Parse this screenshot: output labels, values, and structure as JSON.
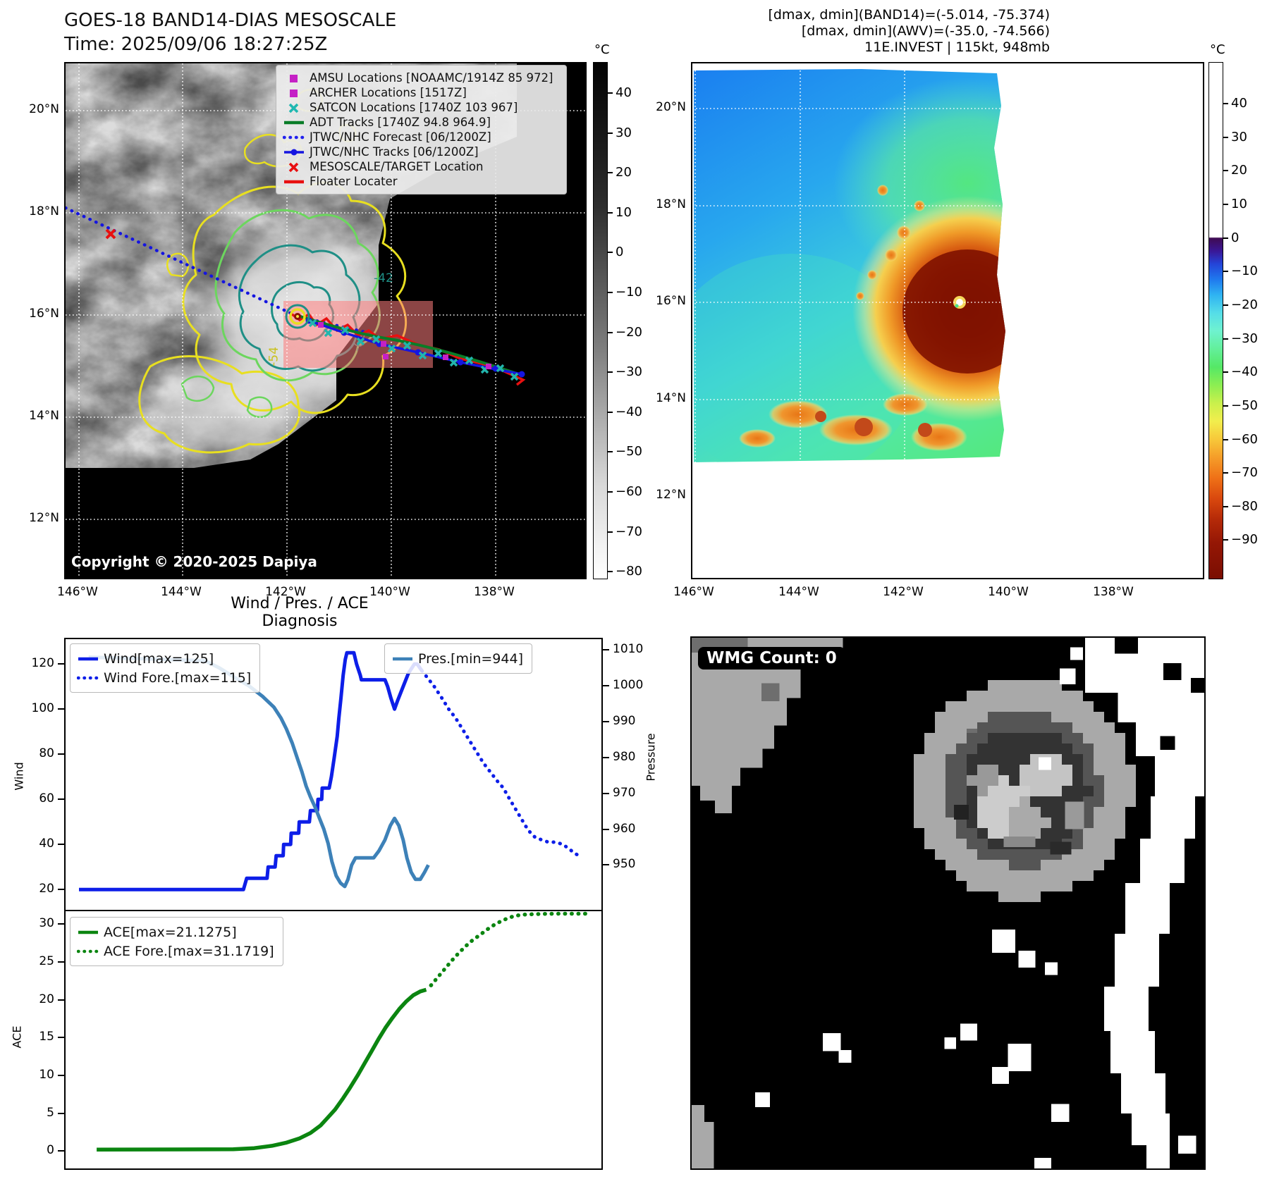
{
  "band14": {
    "title": "GOES-18 BAND14-DIAS MESOSCALE",
    "time": "Time: 2025/09/06 18:27:25Z",
    "copyright": "Copyright © 2020-2025 Dapiya",
    "legend": [
      {
        "marker": "square",
        "color": "#c520c5",
        "label": "AMSU Locations [NOAAMC/1914Z 85 972]"
      },
      {
        "marker": "square",
        "color": "#c520c5",
        "label": "ARCHER Locations [1517Z]"
      },
      {
        "marker": "x",
        "color": "#1fb8b0",
        "label": "SATCON Locations [1740Z 103 967]"
      },
      {
        "marker": "line",
        "color": "#0a7d28",
        "label": "ADT Tracks [1740Z 94.8 964.9]"
      },
      {
        "marker": "dotted",
        "color": "#2222ee",
        "label": "JTWC/NHC Forecast [06/1200Z]"
      },
      {
        "marker": "line-dot",
        "color": "#1515e0",
        "label": "JTWC/NHC Tracks [06/1200Z]"
      },
      {
        "marker": "x",
        "color": "#e81010",
        "label": "MESOSCALE/TARGET Location"
      },
      {
        "marker": "line",
        "color": "#e81010",
        "label": "Floater Locater"
      }
    ],
    "contour_labels": {
      "c42": "-42",
      "c54": "-54",
      "c62": "-62"
    },
    "lat_ticks": [
      "20°N",
      "18°N",
      "16°N",
      "14°N",
      "12°N"
    ],
    "lon_ticks": [
      "146°W",
      "144°W",
      "142°W",
      "140°W",
      "138°W"
    ],
    "colorbar": {
      "unit": "°C",
      "ticks": [
        40,
        30,
        20,
        10,
        0,
        -10,
        -20,
        -30,
        -40,
        -50,
        -60,
        -70,
        -80
      ]
    }
  },
  "awv": {
    "header_lines": [
      "[dmax, dmin](BAND14)=(-5.014, -75.374)",
      "[dmax, dmin](AWV)=(-35.0, -74.566)",
      "11E.INVEST | 115kt, 948mb"
    ],
    "lat_ticks": [
      "20°N",
      "18°N",
      "16°N",
      "14°N",
      "12°N"
    ],
    "lon_ticks": [
      "146°W",
      "144°W",
      "142°W",
      "140°W",
      "138°W"
    ],
    "colorbar": {
      "unit": "°C",
      "ticks": [
        40,
        30,
        20,
        10,
        0,
        -10,
        -20,
        -30,
        -40,
        -50,
        -60,
        -70,
        -80,
        -90
      ]
    }
  },
  "wmg": {
    "count_label": "WMG Count: 0"
  },
  "chart_data": [
    {
      "type": "line",
      "title": "Wind / Pres. / ACE Diagnosis",
      "ylabel": "Wind",
      "y2label": "Pressure",
      "xlim": [
        0,
        100
      ],
      "ylim": [
        11,
        131
      ],
      "y2lim": [
        937.5,
        1013
      ],
      "yticks": [
        20,
        40,
        60,
        80,
        100,
        120
      ],
      "y2ticks": [
        950,
        960,
        970,
        980,
        990,
        1000,
        1010
      ],
      "grid": false,
      "legend_left": [
        {
          "label": "Wind[max=125]",
          "style": "solid",
          "color": "#0d1ee8"
        },
        {
          "label": "Wind Fore.[max=115]",
          "style": "dotted",
          "color": "#0d1ee8"
        }
      ],
      "legend_right": [
        {
          "label": "Pres.[min=944]",
          "style": "solid",
          "color": "#3d81b8"
        }
      ],
      "series": [
        {
          "name": "Wind",
          "axis": "y",
          "style": "solid",
          "color": "#0d1ee8",
          "width": 5,
          "points": [
            [
              2.5,
              20
            ],
            [
              33.2,
              20
            ],
            [
              33.8,
              25
            ],
            [
              37.6,
              25
            ],
            [
              37.8,
              30
            ],
            [
              39.1,
              30
            ],
            [
              39.3,
              35
            ],
            [
              40.6,
              35
            ],
            [
              40.7,
              40
            ],
            [
              42,
              40
            ],
            [
              42.1,
              45
            ],
            [
              43.5,
              45
            ],
            [
              43.6,
              50
            ],
            [
              45.5,
              50
            ],
            [
              45.7,
              55
            ],
            [
              47,
              55
            ],
            [
              47.1,
              60
            ],
            [
              47.8,
              60
            ],
            [
              47.9,
              65
            ],
            [
              49.2,
              65
            ],
            [
              49.6,
              70
            ],
            [
              50.1,
              78
            ],
            [
              50.7,
              88
            ],
            [
              51,
              96
            ],
            [
              51.4,
              105
            ],
            [
              51.8,
              115
            ],
            [
              52.2,
              122
            ],
            [
              52.5,
              125
            ],
            [
              53.8,
              125
            ],
            [
              54.3,
              120
            ],
            [
              55,
              115
            ],
            [
              55.2,
              113
            ],
            [
              59.6,
              113
            ],
            [
              60.1,
              110
            ],
            [
              60.7,
              105
            ],
            [
              61.4,
              100
            ],
            [
              62,
              104
            ],
            [
              63,
              110
            ],
            [
              64,
              116
            ],
            [
              65.1,
              120
            ],
            [
              65.6,
              120
            ],
            [
              66.5,
              117
            ]
          ]
        },
        {
          "name": "Wind Fore.",
          "axis": "y",
          "style": "dotted",
          "color": "#0d1ee8",
          "width": 5,
          "points": [
            [
              66.5,
              117
            ],
            [
              67.5,
              114
            ],
            [
              68.8,
              110
            ],
            [
              70.2,
              105
            ],
            [
              71.5,
              100
            ],
            [
              72.8,
              96
            ],
            [
              74.1,
              91
            ],
            [
              75.4,
              86
            ],
            [
              76.7,
              81
            ],
            [
              78,
              76
            ],
            [
              79.3,
              72
            ],
            [
              80.6,
              68
            ],
            [
              81.7,
              65
            ],
            [
              82.9,
              60
            ],
            [
              83.9,
              56
            ],
            [
              84.9,
              52
            ],
            [
              85.9,
              48
            ],
            [
              86.8,
              45
            ],
            [
              87.7,
              43
            ],
            [
              88.9,
              42
            ],
            [
              90.1,
              41
            ],
            [
              91.5,
              41
            ],
            [
              92.8,
              40
            ],
            [
              94,
              38
            ],
            [
              95,
              36
            ],
            [
              95.9,
              35
            ]
          ]
        },
        {
          "name": "Pres.",
          "axis": "y2",
          "style": "solid",
          "color": "#3d81b8",
          "width": 5,
          "points": [
            [
              4.3,
              1008
            ],
            [
              26,
              1007
            ],
            [
              28.7,
              1005
            ],
            [
              31.9,
              1002
            ],
            [
              34.2,
              1000
            ],
            [
              36.8,
              997
            ],
            [
              38.9,
              994
            ],
            [
              40.2,
              991
            ],
            [
              41.2,
              988
            ],
            [
              42.3,
              984
            ],
            [
              43.2,
              980
            ],
            [
              44.1,
              976
            ],
            [
              44.9,
              972
            ],
            [
              45.7,
              969
            ],
            [
              46.6,
              966
            ],
            [
              47.4,
              963
            ],
            [
              48.2,
              960
            ],
            [
              49,
              956
            ],
            [
              49.7,
              951
            ],
            [
              50.5,
              947
            ],
            [
              51.3,
              945
            ],
            [
              52.1,
              944
            ],
            [
              52.7,
              946
            ],
            [
              53.4,
              950
            ],
            [
              54.1,
              952
            ],
            [
              57.5,
              952
            ],
            [
              58.5,
              954
            ],
            [
              59.6,
              957
            ],
            [
              60.6,
              961
            ],
            [
              61.4,
              963
            ],
            [
              62.2,
              961
            ],
            [
              63,
              957
            ],
            [
              63.7,
              952
            ],
            [
              64.5,
              948
            ],
            [
              65.3,
              946
            ],
            [
              66.2,
              946
            ],
            [
              67,
              948
            ],
            [
              67.7,
              950
            ]
          ]
        }
      ]
    },
    {
      "type": "line",
      "ylabel": "ACE",
      "xlim": [
        0,
        100
      ],
      "ylim": [
        -2.3,
        31.5
      ],
      "yticks": [
        0,
        5,
        10,
        15,
        20,
        25,
        30
      ],
      "grid": false,
      "legend_left": [
        {
          "label": "ACE[max=21.1275]",
          "style": "solid",
          "color": "#0b8510"
        },
        {
          "label": "ACE Fore.[max=31.1719]",
          "style": "dotted",
          "color": "#0b8510"
        }
      ],
      "series": [
        {
          "name": "ACE",
          "axis": "y",
          "style": "solid",
          "color": "#0b8510",
          "width": 5.5,
          "points": [
            [
              5.8,
              0
            ],
            [
              31.3,
              0.05
            ],
            [
              35.2,
              0.2
            ],
            [
              38.5,
              0.5
            ],
            [
              41.1,
              0.9
            ],
            [
              43.7,
              1.5
            ],
            [
              45.7,
              2.2
            ],
            [
              47.6,
              3.2
            ],
            [
              48.9,
              4.2
            ],
            [
              50.3,
              5.3
            ],
            [
              51.8,
              6.8
            ],
            [
              53.1,
              8.2
            ],
            [
              54.5,
              9.8
            ],
            [
              55.8,
              11.4
            ],
            [
              57.1,
              13
            ],
            [
              58.4,
              14.6
            ],
            [
              59.7,
              16.1
            ],
            [
              61,
              17.4
            ],
            [
              62.3,
              18.6
            ],
            [
              63.6,
              19.6
            ],
            [
              64.9,
              20.4
            ],
            [
              66.2,
              20.9
            ],
            [
              67.3,
              21.13
            ]
          ]
        },
        {
          "name": "ACE Fore.",
          "axis": "y",
          "style": "dotted",
          "color": "#0b8510",
          "width": 5.5,
          "points": [
            [
              68.2,
              21.7
            ],
            [
              69.5,
              22.8
            ],
            [
              70.8,
              23.9
            ],
            [
              72.1,
              25
            ],
            [
              73.4,
              26
            ],
            [
              74.7,
              26.9
            ],
            [
              76,
              27.7
            ],
            [
              77.4,
              28.4
            ],
            [
              78.7,
              29.1
            ],
            [
              80,
              29.7
            ],
            [
              81.3,
              30.2
            ],
            [
              82.6,
              30.6
            ],
            [
              83.9,
              30.9
            ],
            [
              85.6,
              31.05
            ],
            [
              87.6,
              31.12
            ],
            [
              89.5,
              31.16
            ],
            [
              92.1,
              31.17
            ],
            [
              94.8,
              31.17
            ],
            [
              97,
              31.17
            ]
          ]
        }
      ]
    }
  ]
}
